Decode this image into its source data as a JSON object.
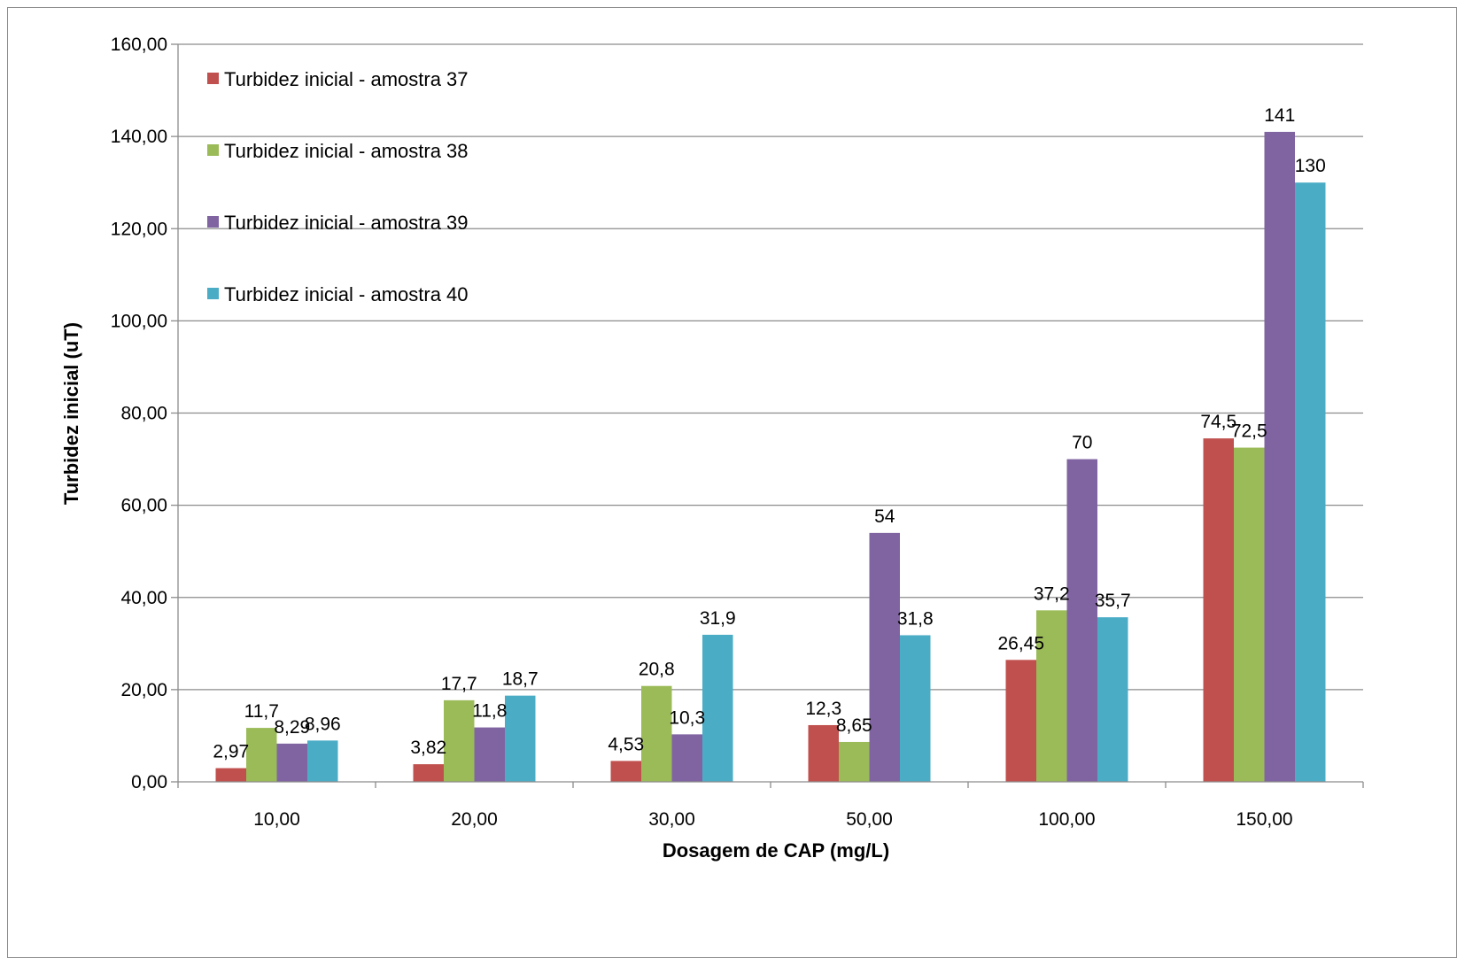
{
  "chart_data": {
    "type": "bar",
    "title": "",
    "xlabel": "Dosagem de CAP (mg/L)",
    "ylabel": "Turbidez inicial (uT)",
    "ylim": [
      0,
      160
    ],
    "yticks": [
      "0,00",
      "20,00",
      "40,00",
      "60,00",
      "80,00",
      "100,00",
      "120,00",
      "140,00",
      "160,00"
    ],
    "categories": [
      "10,00",
      "20,00",
      "30,00",
      "50,00",
      "100,00",
      "150,00"
    ],
    "grid": "horizontal",
    "legend_position": "top-left",
    "series": [
      {
        "name": "Turbidez inicial - amostra 37",
        "color": "#c0504d",
        "values": [
          2.97,
          3.82,
          4.53,
          12.3,
          26.45,
          74.5
        ],
        "labels": [
          "2,97",
          "3,82",
          "4,53",
          "12,3",
          "26,45",
          "74,5"
        ]
      },
      {
        "name": "Turbidez inicial - amostra 38",
        "color": "#9bbb59",
        "values": [
          11.7,
          17.7,
          20.8,
          8.65,
          37.2,
          72.5
        ],
        "labels": [
          "11,7",
          "17,7",
          "20,8",
          "8,65",
          "37,2",
          "72,5"
        ]
      },
      {
        "name": "Turbidez inicial - amostra 39",
        "color": "#8064a2",
        "values": [
          8.29,
          11.8,
          10.3,
          54,
          70,
          141
        ],
        "labels": [
          "8,29",
          "11,8",
          "10,3",
          "54",
          "70",
          "141"
        ]
      },
      {
        "name": "Turbidez inicial - amostra 40",
        "color": "#4bacc6",
        "values": [
          8.96,
          18.7,
          31.9,
          31.8,
          35.7,
          130
        ],
        "labels": [
          "8,96",
          "18,7",
          "31,9",
          "31,8",
          "35,7",
          "130"
        ]
      }
    ]
  }
}
